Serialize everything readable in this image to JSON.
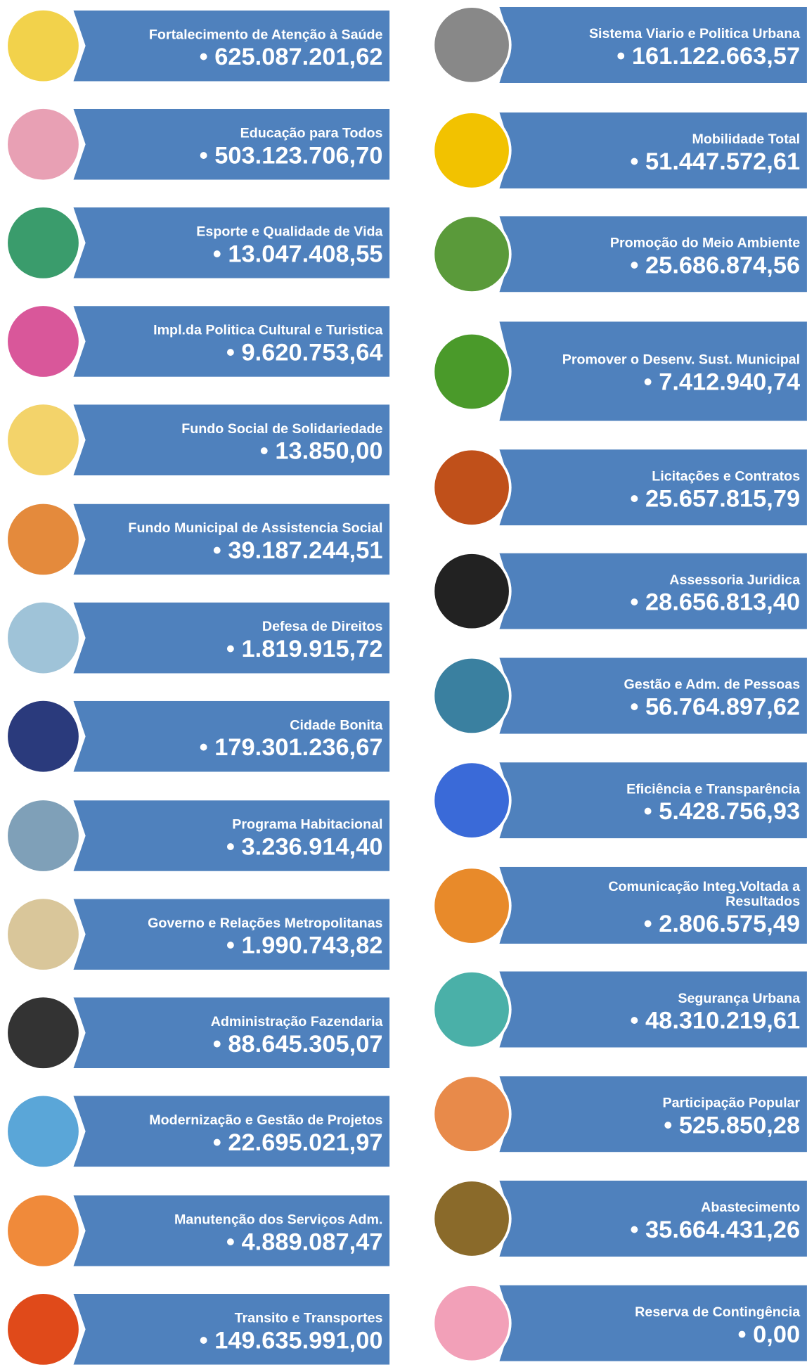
{
  "left": [
    {
      "label": "Fortalecimento de Atenção à Saúde",
      "value": "• 625.087.201,62"
    },
    {
      "label": "Educação para Todos",
      "value": "• 503.123.706,70"
    },
    {
      "label": "Esporte e Qualidade de Vida",
      "value": "• 13.047.408,55"
    },
    {
      "label": "Impl.da Politica Cultural e Turistica",
      "value": "• 9.620.753,64"
    },
    {
      "label": "Fundo Social de Solidariedade",
      "value": "• 13.850,00"
    },
    {
      "label": "Fundo Municipal de Assistencia Social",
      "value": "• 39.187.244,51"
    },
    {
      "label": "Defesa de Direitos",
      "value": "• 1.819.915,72"
    },
    {
      "label": "Cidade Bonita",
      "value": "• 179.301.236,67"
    },
    {
      "label": "Programa Habitacional",
      "value": "• 3.236.914,40"
    },
    {
      "label": "Governo e Relações Metropolitanas",
      "value": "• 1.990.743,82"
    },
    {
      "label": "Administração Fazendaria",
      "value": "• 88.645.305,07"
    },
    {
      "label": "Modernização e Gestão de Projetos",
      "value": "• 22.695.021,97"
    },
    {
      "label": "Manutenção dos Serviços Adm.",
      "value": "• 4.889.087,47"
    },
    {
      "label": "Transito e Transportes",
      "value": "• 149.635.991,00"
    }
  ],
  "right": [
    {
      "label": "Sistema Viario e Politica Urbana",
      "value": "• 161.122.663,57"
    },
    {
      "label": "Mobilidade Total",
      "value": "• 51.447.572,61"
    },
    {
      "label": "Promoção do Meio Ambiente",
      "value": "• 25.686.874,56"
    },
    {
      "label": "Promover o Desenv. Sust. Municipal",
      "value": "• 7.412.940,74"
    },
    {
      "label": "Licitações e Contratos",
      "value": "• 25.657.815,79"
    },
    {
      "label": "Assessoria Juridica",
      "value": "• 28.656.813,40"
    },
    {
      "label": "Gestão e Adm. de Pessoas",
      "value": "• 56.764.897,62"
    },
    {
      "label": "Eficiência e Transparência",
      "value": "• 5.428.756,93"
    },
    {
      "label": "Comunicação Integ.Voltada a Resultados",
      "value": "• 2.806.575,49"
    },
    {
      "label": "Segurança Urbana",
      "value": "• 48.310.219,61"
    },
    {
      "label": "Participação Popular",
      "value": "• 525.850,28"
    },
    {
      "label": "Abastecimento",
      "value": "• 35.664.431,26"
    },
    {
      "label": "Reserva de Contingência",
      "value": "• 0,00"
    }
  ]
}
